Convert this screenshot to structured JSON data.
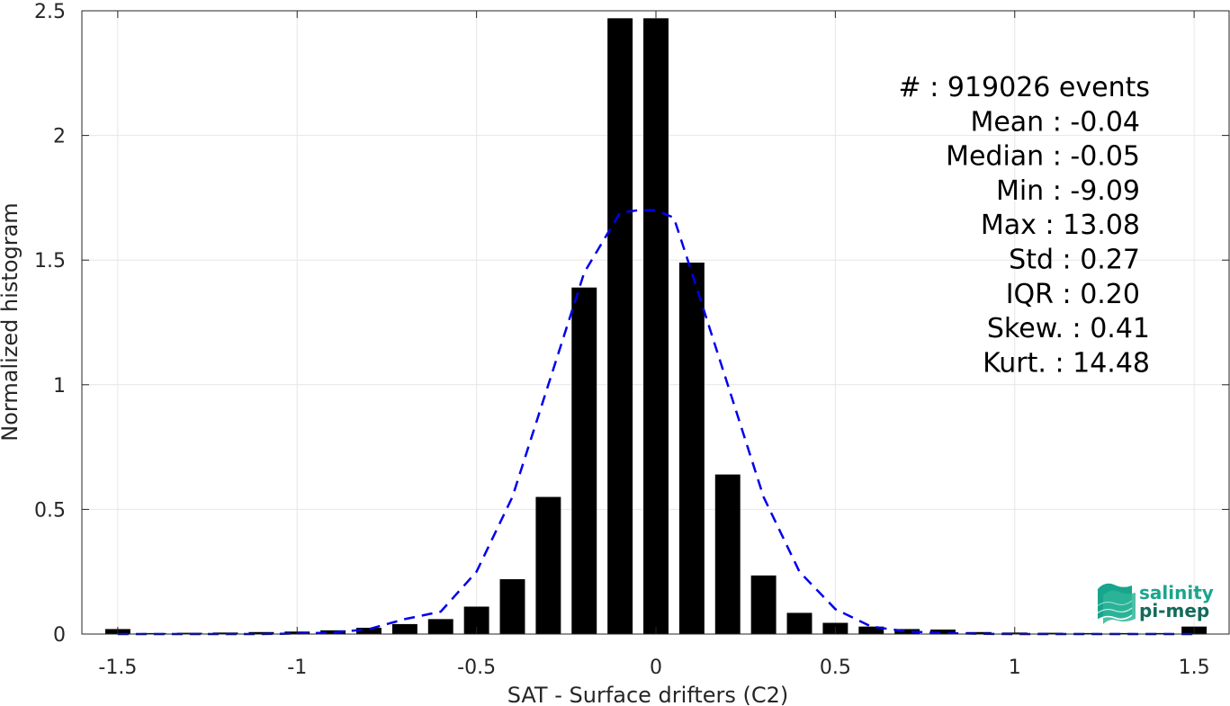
{
  "chart_data": {
    "type": "bar",
    "xlabel": "SAT - Surface drifters (C2)",
    "ylabel": "Normalized histogram",
    "xlim": [
      -1.6,
      1.6
    ],
    "ylim": [
      0,
      2.5
    ],
    "x_ticks": [
      -1.5,
      -1,
      -0.5,
      0,
      0.5,
      1,
      1.5
    ],
    "x_tick_labels": [
      "-1.5",
      "-1",
      "-0.5",
      "0",
      "0.5",
      "1",
      "1.5"
    ],
    "y_ticks": [
      0,
      0.5,
      1,
      1.5,
      2,
      2.5
    ],
    "y_tick_labels": [
      "0",
      "0.5",
      "1",
      "1.5",
      "2",
      "2.5"
    ],
    "grid": true,
    "bar_width": 0.07,
    "bar_color": "#000000",
    "bars": {
      "x": [
        -1.5,
        -1.4,
        -1.3,
        -1.2,
        -1.1,
        -1.0,
        -0.9,
        -0.8,
        -0.7,
        -0.6,
        -0.5,
        -0.4,
        -0.3,
        -0.2,
        -0.1,
        0.0,
        0.1,
        0.2,
        0.3,
        0.4,
        0.5,
        0.6,
        0.7,
        0.8,
        0.9,
        1.0,
        1.1,
        1.2,
        1.3,
        1.4,
        1.5
      ],
      "values": [
        0.02,
        0.004,
        0.005,
        0.006,
        0.008,
        0.01,
        0.015,
        0.025,
        0.04,
        0.06,
        0.11,
        0.22,
        0.55,
        1.39,
        2.47,
        2.47,
        1.49,
        0.64,
        0.235,
        0.085,
        0.045,
        0.03,
        0.02,
        0.018,
        0.008,
        0.006,
        0.005,
        0.004,
        0.004,
        0.004,
        0.03
      ]
    },
    "fit_curve": {
      "style": "dashed",
      "color": "#0000ee",
      "x": [
        -1.5,
        -1.4,
        -1.3,
        -1.2,
        -1.1,
        -1.0,
        -0.9,
        -0.8,
        -0.7,
        -0.6,
        -0.5,
        -0.4,
        -0.3,
        -0.2,
        -0.1,
        -0.05,
        0.0,
        0.05,
        0.1,
        0.2,
        0.3,
        0.4,
        0.5,
        0.6,
        0.7,
        0.8,
        0.9,
        1.0,
        1.1,
        1.2,
        1.3,
        1.4,
        1.5
      ],
      "y": [
        0.0,
        0.0,
        0.0,
        0.0,
        0.0,
        0.002,
        0.006,
        0.02,
        0.06,
        0.09,
        0.25,
        0.55,
        1.0,
        1.45,
        1.69,
        1.7,
        1.7,
        1.67,
        1.45,
        1.0,
        0.55,
        0.25,
        0.1,
        0.03,
        0.01,
        0.004,
        0.001,
        0.0,
        0.0,
        0.0,
        0.0,
        0.0,
        0.0
      ]
    },
    "annotations": [
      "#  : 919026 events",
      "Mean : -0.04",
      "Median : -0.05",
      "Min : -9.09",
      "Max : 13.08",
      "Std : 0.27",
      "IQR : 0.20",
      "Skew. : 0.41",
      "Kurt. : 14.48"
    ]
  },
  "logo": {
    "line1": "salinity",
    "line2": "pi-mep",
    "color1": "#1aa58c",
    "color2": "#136a5a"
  }
}
